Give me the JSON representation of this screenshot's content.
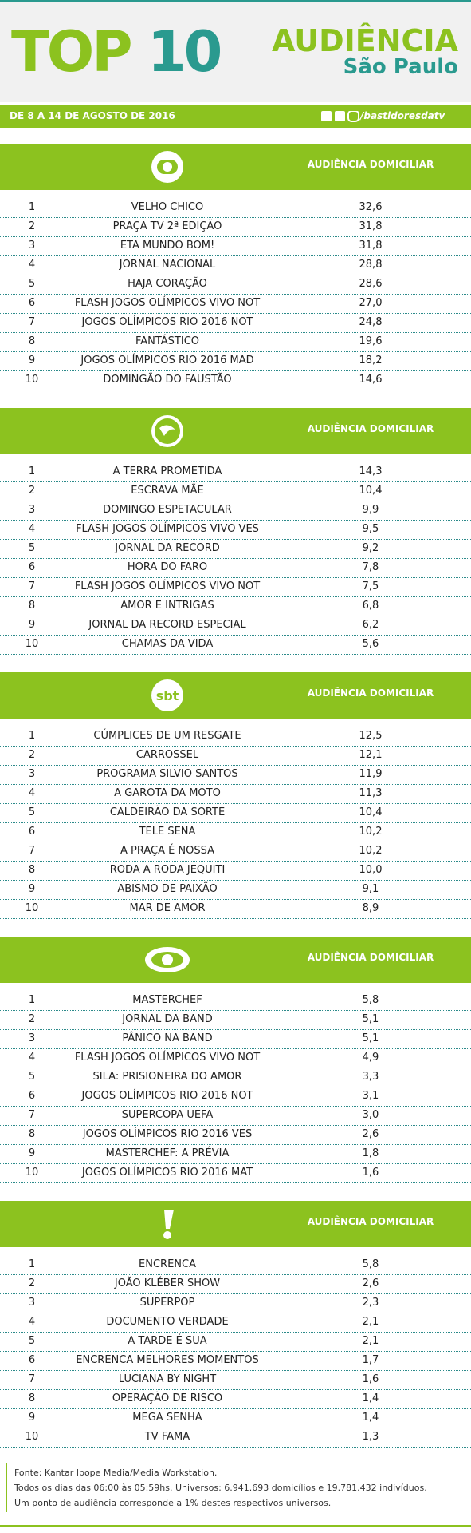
{
  "header": {
    "title_top": "TOP",
    "title_num": "10",
    "subtitle": "AUDIÊNCIA",
    "region": "São Paulo",
    "date": "DE 8 A 14 DE AGOSTO DE 2016",
    "handle": "/bastidoresdatv"
  },
  "sections": [
    {
      "column_label": "AUDIÊNCIA DOMICILIAR",
      "rows": [
        [
          1,
          "VELHO CHICO",
          "32,6"
        ],
        [
          2,
          "PRAÇA TV 2ª EDIÇÃO",
          "31,8"
        ],
        [
          3,
          "ETA MUNDO BOM!",
          "31,8"
        ],
        [
          4,
          "JORNAL NACIONAL",
          "28,8"
        ],
        [
          5,
          "HAJA CORAÇÃO",
          "28,6"
        ],
        [
          6,
          "FLASH JOGOS OLÍMPICOS VIVO NOT",
          "27,0"
        ],
        [
          7,
          "JOGOS OLÍMPICOS RIO 2016 NOT",
          "24,8"
        ],
        [
          8,
          "FANTÁSTICO",
          "19,6"
        ],
        [
          9,
          "JOGOS OLÍMPICOS RIO 2016 MAD",
          "18,2"
        ],
        [
          10,
          "DOMINGÃO DO FAUSTÃO",
          "14,6"
        ]
      ]
    },
    {
      "column_label": "AUDIÊNCIA DOMICILIAR",
      "rows": [
        [
          1,
          "A TERRA PROMETIDA",
          "14,3"
        ],
        [
          2,
          "ESCRAVA MÃE",
          "10,4"
        ],
        [
          3,
          "DOMINGO ESPETACULAR",
          "9,9"
        ],
        [
          4,
          "FLASH JOGOS OLÍMPICOS VIVO VES",
          "9,5"
        ],
        [
          5,
          "JORNAL DA RECORD",
          "9,2"
        ],
        [
          6,
          "HORA DO FARO",
          "7,8"
        ],
        [
          7,
          "FLASH JOGOS OLÍMPICOS VIVO NOT",
          "7,5"
        ],
        [
          8,
          "AMOR E INTRIGAS",
          "6,8"
        ],
        [
          9,
          "JORNAL DA RECORD ESPECIAL",
          "6,2"
        ],
        [
          10,
          "CHAMAS DA VIDA",
          "5,6"
        ]
      ]
    },
    {
      "logo_text": "sbt",
      "column_label": "AUDIÊNCIA DOMICILIAR",
      "rows": [
        [
          1,
          "CÚMPLICES DE UM RESGATE",
          "12,5"
        ],
        [
          2,
          "CARROSSEL",
          "12,1"
        ],
        [
          3,
          "PROGRAMA SILVIO SANTOS",
          "11,9"
        ],
        [
          4,
          "A GAROTA DA MOTO",
          "11,3"
        ],
        [
          5,
          "CALDEIRÃO DA SORTE",
          "10,4"
        ],
        [
          6,
          "TELE SENA",
          "10,2"
        ],
        [
          7,
          "A PRAÇA É NOSSA",
          "10,2"
        ],
        [
          8,
          "RODA A RODA JEQUITI",
          "10,0"
        ],
        [
          9,
          "ABISMO DE PAIXÃO",
          "9,1"
        ],
        [
          10,
          "MAR DE AMOR",
          "8,9"
        ]
      ]
    },
    {
      "column_label": "AUDIÊNCIA DOMICILIAR",
      "rows": [
        [
          1,
          "MASTERCHEF",
          "5,8"
        ],
        [
          2,
          "JORNAL DA BAND",
          "5,1"
        ],
        [
          3,
          "PÂNICO NA BAND",
          "5,1"
        ],
        [
          4,
          "FLASH JOGOS OLÍMPICOS VIVO NOT",
          "4,9"
        ],
        [
          5,
          "SILA: PRISIONEIRA DO AMOR",
          "3,3"
        ],
        [
          6,
          "JOGOS OLÍMPICOS RIO 2016 NOT",
          "3,1"
        ],
        [
          7,
          "SUPERCOPA UEFA",
          "3,0"
        ],
        [
          8,
          "JOGOS OLÍMPICOS RIO 2016 VES",
          "2,6"
        ],
        [
          9,
          "MASTERCHEF: A PRÉVIA",
          "1,8"
        ],
        [
          10,
          "JOGOS OLÍMPICOS RIO 2016 MAT",
          "1,6"
        ]
      ]
    },
    {
      "column_label": "AUDIÊNCIA DOMICILIAR",
      "rows": [
        [
          1,
          "ENCRENCA",
          "5,8"
        ],
        [
          2,
          "JOÃO KLÉBER SHOW",
          "2,6"
        ],
        [
          3,
          "SUPERPOP",
          "2,3"
        ],
        [
          4,
          "DOCUMENTO VERDADE",
          "2,1"
        ],
        [
          5,
          "A TARDE É SUA",
          "2,1"
        ],
        [
          6,
          "ENCRENCA MELHORES MOMENTOS",
          "1,7"
        ],
        [
          7,
          "LUCIANA BY NIGHT",
          "1,6"
        ],
        [
          8,
          "OPERAÇÃO DE RISCO",
          "1,4"
        ],
        [
          9,
          "MEGA SENHA",
          "1,4"
        ],
        [
          10,
          "TV FAMA",
          "1,3"
        ]
      ]
    }
  ],
  "footer": [
    "Fonte: Kantar Ibope Media/Media Workstation.",
    "Todos os dias das 06:00 às 05:59hs. Universos: 6.941.693 domicílios e 19.781.432 indivíduos.",
    "Um ponto de audiência corresponde a 1% destes respectivos universos."
  ]
}
